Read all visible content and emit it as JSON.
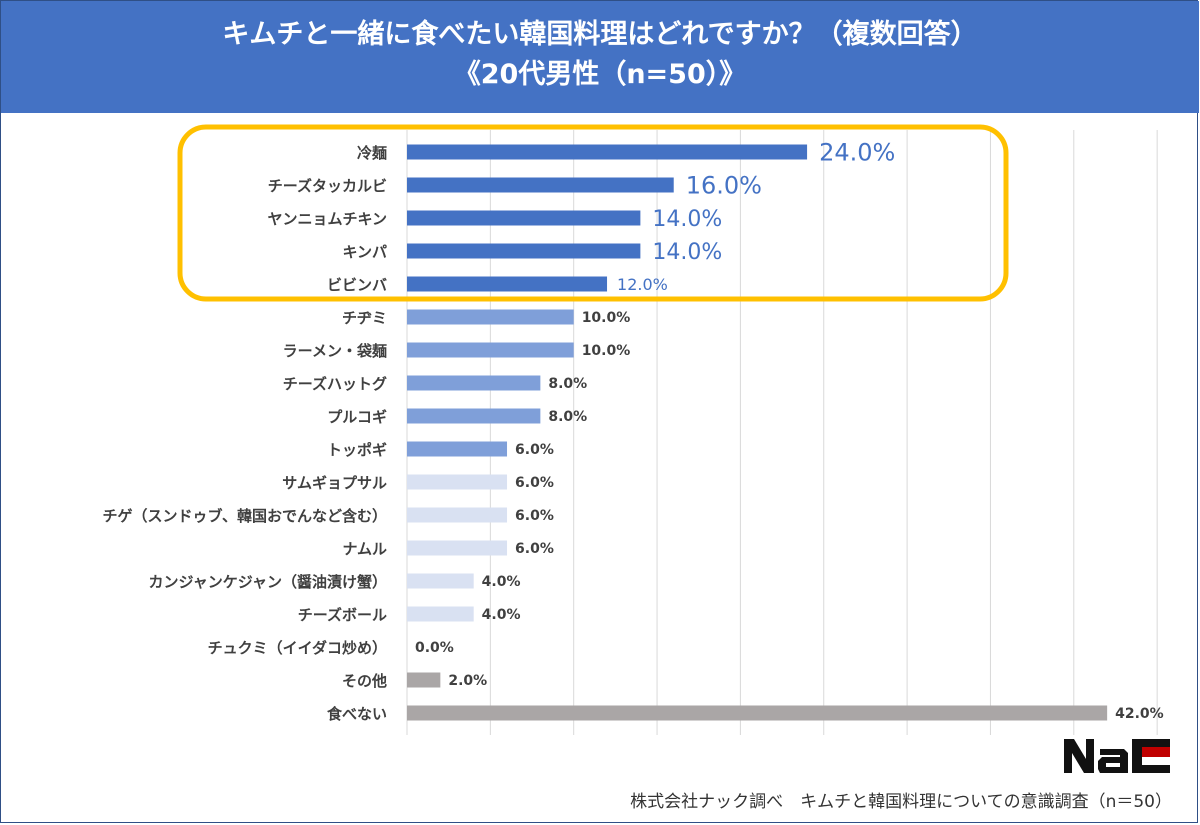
{
  "header": {
    "title_line1": "キムチと一緒に食べたい韓国料理はどれですか？（複数回答）",
    "title_line2": "《20代男性（n=50）》"
  },
  "footer": {
    "source": "株式会社ナック調べ　キムチと韓国料理についての意識調査（n＝50）",
    "logo_text": "Nac"
  },
  "colors": {
    "header_bg": "#4472c4",
    "top_bar": "#4472c4",
    "mid_bar": "#7f9fd9",
    "light_bar": "#d9e1f2",
    "gray_bar": "#aaa6a6",
    "highlight_border": "#ffc000",
    "top_label": "#4472c4"
  },
  "chart_data": {
    "type": "bar",
    "orientation": "horizontal",
    "categories": [
      "冷麺",
      "チーズタッカルビ",
      "ヤンニョムチキン",
      "キンパ",
      "ビビンバ",
      "チヂミ",
      "ラーメン・袋麺",
      "チーズハットグ",
      "プルコギ",
      "トッポギ",
      "サムギョプサル",
      "チゲ（スンドゥブ、韓国おでんなど含む）",
      "ナムル",
      "カンジャンケジャン（醤油漬け蟹）",
      "チーズボール",
      "チュクミ（イイダコ炒め）",
      "その他",
      "食べない"
    ],
    "values": [
      24.0,
      16.0,
      14.0,
      14.0,
      12.0,
      10.0,
      10.0,
      8.0,
      8.0,
      6.0,
      6.0,
      6.0,
      6.0,
      4.0,
      4.0,
      0.0,
      2.0,
      42.0
    ],
    "labels": [
      "24.0%",
      "16.0%",
      "14.0%",
      "14.0%",
      "12.0%",
      "10.0%",
      "10.0%",
      "8.0%",
      "8.0%",
      "6.0%",
      "6.0%",
      "6.0%",
      "6.0%",
      "4.0%",
      "4.0%",
      "0.0%",
      "2.0%",
      "42.0%"
    ],
    "highlighted_top": 5,
    "xlim": [
      0,
      45
    ],
    "grid": true,
    "legend": "none"
  }
}
